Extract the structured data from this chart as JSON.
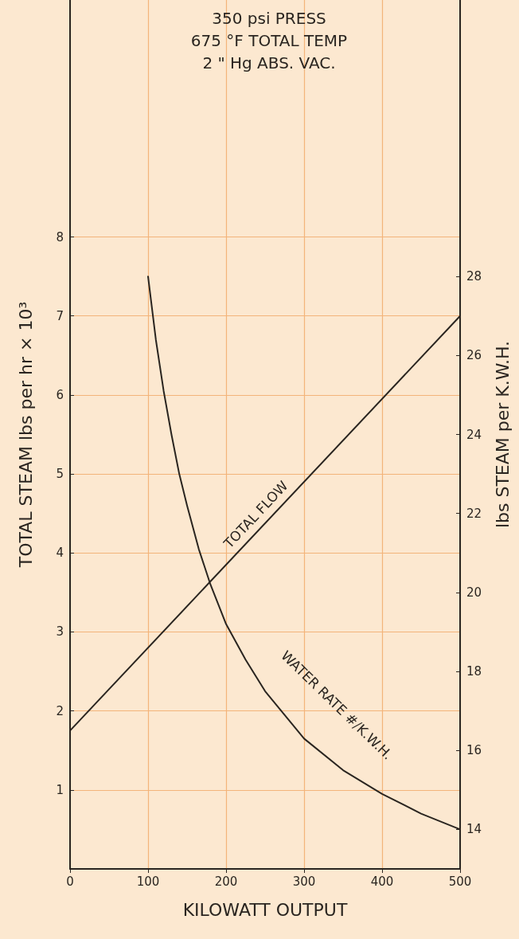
{
  "chart_data": {
    "type": "line",
    "title": "350 psi PRESS\n675 °F TOTAL TEMP\n2 \" Hg ABS. VAC.",
    "xlabel": "KILOWATT OUTPUT",
    "ylabel": "TOTAL STEAM lbs per hr × 10³",
    "y2label": "lbs STEAM per K.W.H.",
    "xlim": [
      0,
      500
    ],
    "xticks": [
      0,
      100,
      200,
      300,
      400,
      500
    ],
    "ylim": [
      0,
      11
    ],
    "yticks": [
      1,
      2,
      3,
      4,
      5,
      6,
      7,
      8
    ],
    "y2lim": [
      13,
      35
    ],
    "y2ticks": [
      14,
      16,
      18,
      20,
      22,
      24,
      26,
      28
    ],
    "series": [
      {
        "name": "TOTAL FLOW",
        "color": "#2a2520",
        "x": [
          0,
          500
        ],
        "values": [
          1.75,
          7.0
        ]
      },
      {
        "name": "WATER RATE #/K.W.H.",
        "color": "#2a2520",
        "axis": "y2",
        "x": [
          100,
          110,
          120,
          130,
          140,
          150,
          165,
          180,
          200,
          225,
          250,
          275,
          300,
          350,
          400,
          450,
          500
        ],
        "values": [
          28,
          26.4,
          25.1,
          24.0,
          23.0,
          22.2,
          21.1,
          20.2,
          19.2,
          18.3,
          17.5,
          16.9,
          16.3,
          15.5,
          14.9,
          14.4,
          14.0
        ]
      }
    ],
    "grid": true,
    "legend": false,
    "marker": "none",
    "line_style": "solid"
  }
}
